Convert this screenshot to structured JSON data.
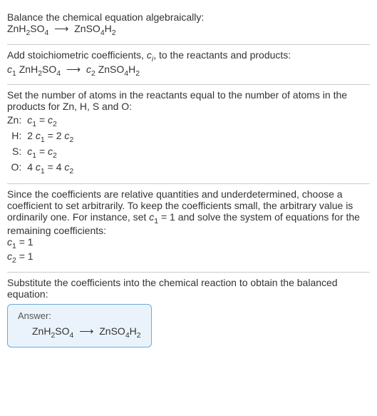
{
  "title_line1": "Balance the chemical equation algebraically:",
  "title_eq_left": "ZnH",
  "title_eq_left_sub": "2",
  "title_eq_left2": "SO",
  "title_eq_left2_sub": "4",
  "title_arrow": "⟶",
  "title_eq_right": "ZnSO",
  "title_eq_right_sub": "4",
  "title_eq_right2": "H",
  "title_eq_right2_sub": "2",
  "step1_text": "Add stoichiometric coefficients, ",
  "step1_ci": "c",
  "step1_ci_sub": "i",
  "step1_text2": ", to the reactants and products:",
  "step1_c1": "c",
  "step1_c1_sub": "1",
  "step1_sp1": " ZnH",
  "step1_sp1_sub": "2",
  "step1_sp1b": "SO",
  "step1_sp1b_sub": "4",
  "step1_c2": "c",
  "step1_c2_sub": "2",
  "step1_sp2": " ZnSO",
  "step1_sp2_sub": "4",
  "step1_sp2b": "H",
  "step1_sp2b_sub": "2",
  "step2_text": "Set the number of atoms in the reactants equal to the number of atoms in the products for Zn, H, S and O:",
  "rows": [
    {
      "elem": "Zn:",
      "lhs_a": "",
      "lhs_c": "c",
      "lhs_s": "1",
      "eq": " = ",
      "rhs_a": "",
      "rhs_c": "c",
      "rhs_s": "2"
    },
    {
      "elem": "H:",
      "lhs_a": "2 ",
      "lhs_c": "c",
      "lhs_s": "1",
      "eq": " = ",
      "rhs_a": "2 ",
      "rhs_c": "c",
      "rhs_s": "2"
    },
    {
      "elem": "S:",
      "lhs_a": "",
      "lhs_c": "c",
      "lhs_s": "1",
      "eq": " = ",
      "rhs_a": "",
      "rhs_c": "c",
      "rhs_s": "2"
    },
    {
      "elem": "O:",
      "lhs_a": "4 ",
      "lhs_c": "c",
      "lhs_s": "1",
      "eq": " = ",
      "rhs_a": "4 ",
      "rhs_c": "c",
      "rhs_s": "2"
    }
  ],
  "step3_a": "Since the coefficients are relative quantities and underdetermined, choose a coefficient to set arbitrarily. To keep the coefficients small, the arbitrary value is ordinarily one. For instance, set ",
  "step3_c1": "c",
  "step3_c1_sub": "1",
  "step3_b": " = 1 and solve the system of equations for the remaining coefficients:",
  "res1_c": "c",
  "res1_s": "1",
  "res1_v": " = 1",
  "res2_c": "c",
  "res2_s": "2",
  "res2_v": " = 1",
  "step4_text": "Substitute the coefficients into the chemical reaction to obtain the balanced equation:",
  "answer_label": "Answer:",
  "ans_l1": "ZnH",
  "ans_l1_sub": "2",
  "ans_l2": "SO",
  "ans_l2_sub": "4",
  "ans_arrow": "⟶",
  "ans_r1": "ZnSO",
  "ans_r1_sub": "4",
  "ans_r2": "H",
  "ans_r2_sub": "2"
}
